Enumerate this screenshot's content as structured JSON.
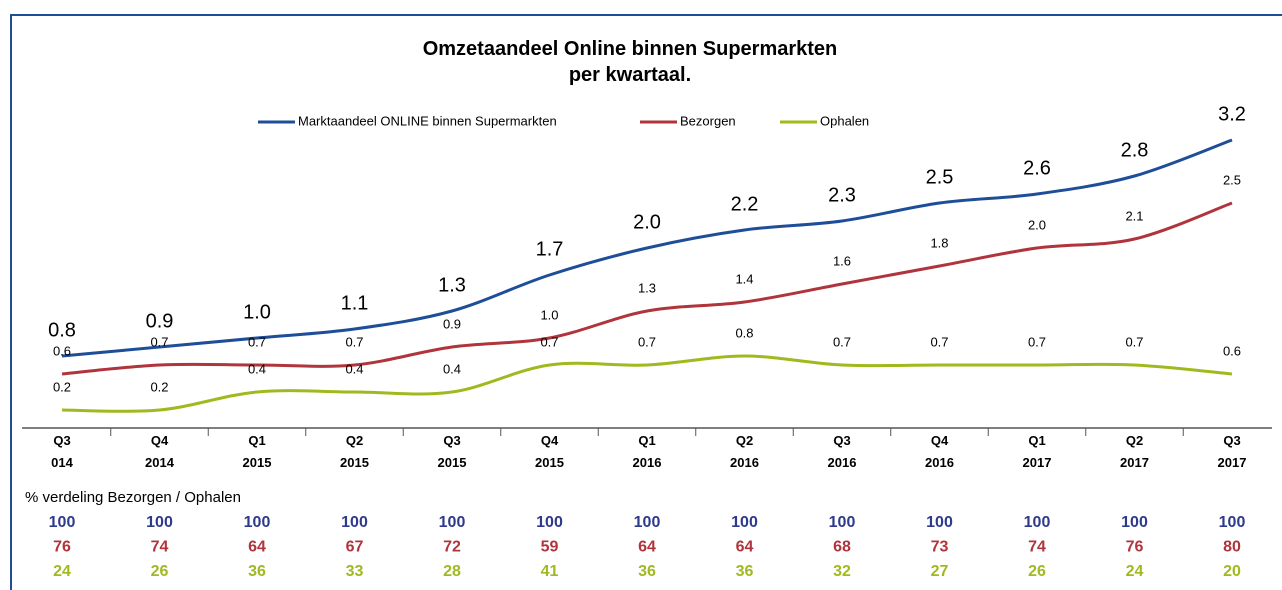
{
  "chart_data": {
    "type": "line",
    "title": "Omzetaandeel Online binnen Supermarkten\nper kwartaal.",
    "categories": [
      "Q3\n014",
      "Q4\n2014",
      "Q1\n2015",
      "Q2\n2015",
      "Q3\n2015",
      "Q4\n2015",
      "Q1\n2016",
      "Q2\n2016",
      "Q3\n2016",
      "Q4\n2016",
      "Q1\n2017",
      "Q2\n2017",
      "Q3\n2017"
    ],
    "ylim": [
      0,
      3.3
    ],
    "series": [
      {
        "name": "Marktaandeel ONLINE binnen Supermarkten",
        "color": "#1f4e99",
        "values": [
          0.8,
          0.9,
          1.0,
          1.1,
          1.3,
          1.7,
          2.0,
          2.2,
          2.3,
          2.5,
          2.6,
          2.8,
          3.2
        ],
        "value_labels": [
          "0.8",
          "0.9",
          "1.0",
          "1.1",
          "1.3",
          "1.7",
          "2.0",
          "2.2",
          "2.3",
          "2.5",
          "2.6",
          "2.8",
          "3.2"
        ]
      },
      {
        "name": "Bezorgen",
        "color": "#b0343c",
        "values": [
          0.6,
          0.7,
          0.7,
          0.7,
          0.9,
          1.0,
          1.3,
          1.4,
          1.6,
          1.8,
          2.0,
          2.1,
          2.5
        ],
        "value_labels": [
          "0.6",
          "0.7",
          "0.7",
          "0.7",
          "0.9",
          "1.0",
          "1.3",
          "1.4",
          "1.6",
          "1.8",
          "2.0",
          "2.1",
          "2.5"
        ]
      },
      {
        "name": "Ophalen",
        "color": "#9fba1f",
        "values": [
          0.2,
          0.2,
          0.4,
          0.4,
          0.4,
          0.7,
          0.7,
          0.8,
          0.7,
          0.7,
          0.7,
          0.7,
          0.6
        ],
        "value_labels": [
          "0.2",
          "0.2",
          "0.4",
          "0.4",
          "0.4",
          "0.7",
          "0.7",
          "0.8",
          "0.7",
          "0.7",
          "0.7",
          "0.7",
          "0.6"
        ]
      }
    ]
  },
  "table": {
    "title": "% verdeling Bezorgen / Ophalen",
    "row_colors": [
      "#2e3a8c",
      "#b0343c",
      "#9fba1f"
    ],
    "rows": [
      [
        100,
        100,
        100,
        100,
        100,
        100,
        100,
        100,
        100,
        100,
        100,
        100,
        100
      ],
      [
        76,
        74,
        64,
        67,
        72,
        59,
        64,
        64,
        68,
        73,
        74,
        76,
        80
      ],
      [
        24,
        26,
        36,
        33,
        28,
        41,
        36,
        36,
        32,
        27,
        26,
        24,
        20
      ]
    ]
  }
}
